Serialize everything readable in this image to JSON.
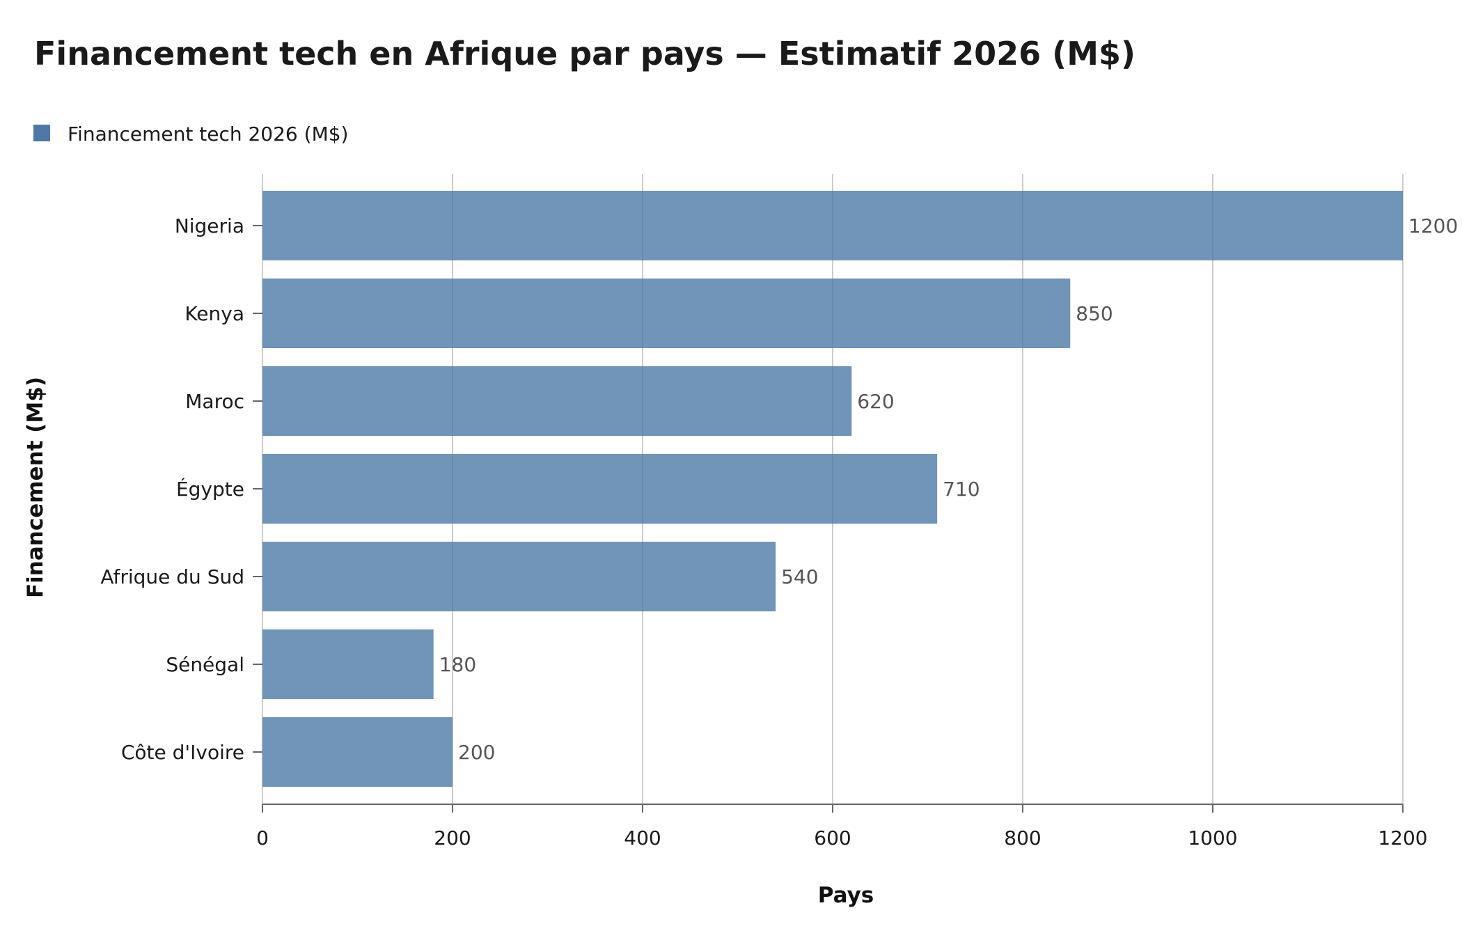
{
  "chart_data": {
    "type": "bar",
    "orientation": "horizontal",
    "title": "Financement tech en Afrique par pays — Estimatif 2026 (M$)",
    "xlabel": "Pays",
    "ylabel": "Financement (M$)",
    "categories": [
      "Nigeria",
      "Kenya",
      "Maroc",
      "Égypte",
      "Afrique du Sud",
      "Sénégal",
      "Côte d'Ivoire"
    ],
    "series": [
      {
        "name": "Financement tech 2026 (M$)",
        "values": [
          1200,
          850,
          620,
          710,
          540,
          180,
          200
        ],
        "color": "#4e79a7"
      }
    ],
    "xlim": [
      0,
      1200
    ],
    "xticks": [
      0,
      200,
      400,
      600,
      800,
      1000,
      1200
    ],
    "grid": "vertical",
    "legend_position": "top-left",
    "data_labels": true
  }
}
